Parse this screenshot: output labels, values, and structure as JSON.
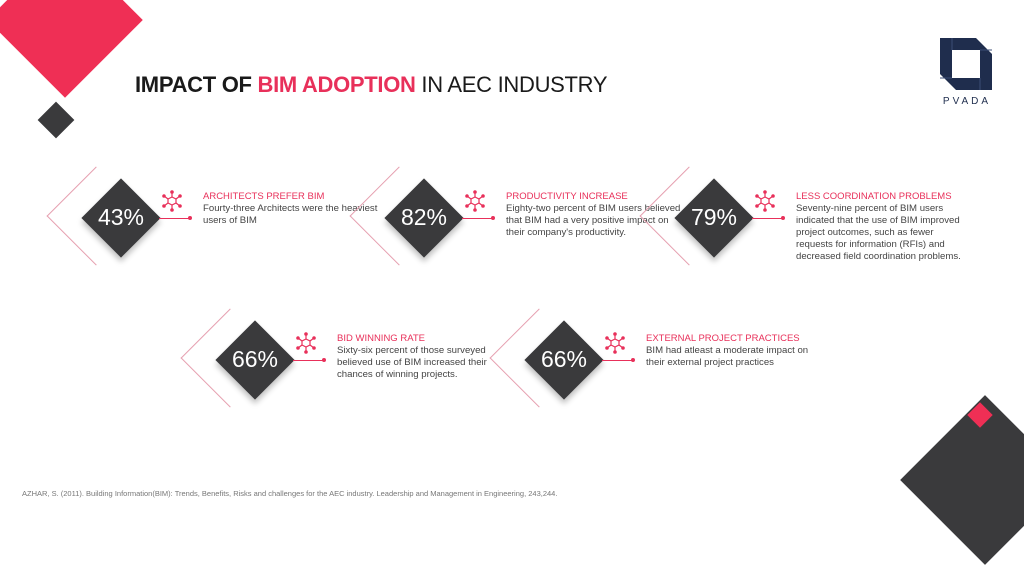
{
  "title": {
    "part1": "IMPACT OF ",
    "part2": "BIM ADOPTION",
    "part3": " IN AEC INDUSTRY"
  },
  "logo": {
    "text": "PVADA"
  },
  "colors": {
    "accent": "#e8305a",
    "dark": "#3a3a3c",
    "logo": "#1f2d4d"
  },
  "cards": [
    {
      "percent": "43%",
      "title": "ARCHITECTS PREFER BIM",
      "text": "Fourty-three Architects were the heaviest users of BIM",
      "icon": "network-cube-icon"
    },
    {
      "percent": "82%",
      "title": "PRODUCTIVITY INCREASE",
      "text": "Eighty-two percent of BIM users believed that BIM had a very positive impact on their company's productivity.",
      "icon": "network-cube-icon"
    },
    {
      "percent": "79%",
      "title": "LESS COORDINATION PROBLEMS",
      "text": "Seventy-nine percent of BIM users indicated that the use of BIM improved project outcomes, such as fewer requests for information (RFIs) and decreased field coordination problems.",
      "icon": "network-cube-icon"
    },
    {
      "percent": "66%",
      "title": "BID WINNING RATE",
      "text": "Sixty-six percent of those surveyed believed use of BIM increased their chances of winning projects.",
      "icon": "network-cube-icon"
    },
    {
      "percent": "66%",
      "title": "EXTERNAL PROJECT PRACTICES",
      "text": "BIM had atleast a moderate impact on their external project practices",
      "icon": "network-cube-icon"
    }
  ],
  "citation": "AZHAR, S. (2011). Building Information(BIM): Trends, Benefits, Risks and challenges for the AEC industry. Leadership and Management in Engineering, 243,244."
}
